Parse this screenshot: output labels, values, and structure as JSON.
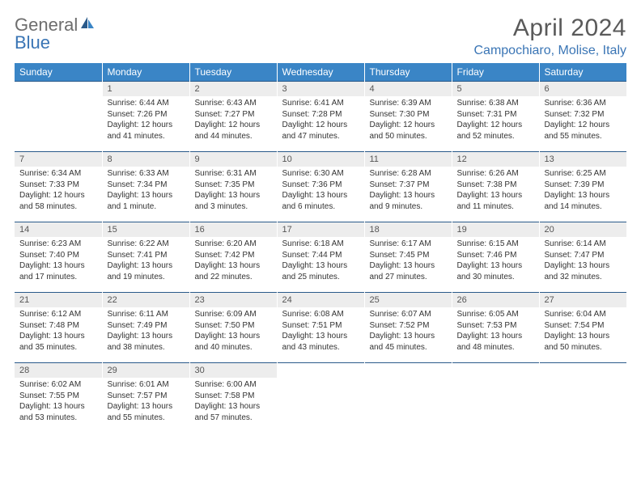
{
  "logo": {
    "text1": "General",
    "text2": "Blue"
  },
  "title": "April 2024",
  "location": "Campochiaro, Molise, Italy",
  "colors": {
    "header_bg": "#3a85c6",
    "header_text": "#ffffff",
    "num_bg": "#ededed",
    "border_top": "#2a5a8a",
    "accent": "#3a75b5",
    "logo_gray": "#6d6d6d"
  },
  "day_headers": [
    "Sunday",
    "Monday",
    "Tuesday",
    "Wednesday",
    "Thursday",
    "Friday",
    "Saturday"
  ],
  "weeks": [
    {
      "nums": [
        "",
        "1",
        "2",
        "3",
        "4",
        "5",
        "6"
      ],
      "cells": [
        null,
        {
          "sunrise": "6:44 AM",
          "sunset": "7:26 PM",
          "daylight": "12 hours and 41 minutes."
        },
        {
          "sunrise": "6:43 AM",
          "sunset": "7:27 PM",
          "daylight": "12 hours and 44 minutes."
        },
        {
          "sunrise": "6:41 AM",
          "sunset": "7:28 PM",
          "daylight": "12 hours and 47 minutes."
        },
        {
          "sunrise": "6:39 AM",
          "sunset": "7:30 PM",
          "daylight": "12 hours and 50 minutes."
        },
        {
          "sunrise": "6:38 AM",
          "sunset": "7:31 PM",
          "daylight": "12 hours and 52 minutes."
        },
        {
          "sunrise": "6:36 AM",
          "sunset": "7:32 PM",
          "daylight": "12 hours and 55 minutes."
        }
      ]
    },
    {
      "nums": [
        "7",
        "8",
        "9",
        "10",
        "11",
        "12",
        "13"
      ],
      "cells": [
        {
          "sunrise": "6:34 AM",
          "sunset": "7:33 PM",
          "daylight": "12 hours and 58 minutes."
        },
        {
          "sunrise": "6:33 AM",
          "sunset": "7:34 PM",
          "daylight": "13 hours and 1 minute."
        },
        {
          "sunrise": "6:31 AM",
          "sunset": "7:35 PM",
          "daylight": "13 hours and 3 minutes."
        },
        {
          "sunrise": "6:30 AM",
          "sunset": "7:36 PM",
          "daylight": "13 hours and 6 minutes."
        },
        {
          "sunrise": "6:28 AM",
          "sunset": "7:37 PM",
          "daylight": "13 hours and 9 minutes."
        },
        {
          "sunrise": "6:26 AM",
          "sunset": "7:38 PM",
          "daylight": "13 hours and 11 minutes."
        },
        {
          "sunrise": "6:25 AM",
          "sunset": "7:39 PM",
          "daylight": "13 hours and 14 minutes."
        }
      ]
    },
    {
      "nums": [
        "14",
        "15",
        "16",
        "17",
        "18",
        "19",
        "20"
      ],
      "cells": [
        {
          "sunrise": "6:23 AM",
          "sunset": "7:40 PM",
          "daylight": "13 hours and 17 minutes."
        },
        {
          "sunrise": "6:22 AM",
          "sunset": "7:41 PM",
          "daylight": "13 hours and 19 minutes."
        },
        {
          "sunrise": "6:20 AM",
          "sunset": "7:42 PM",
          "daylight": "13 hours and 22 minutes."
        },
        {
          "sunrise": "6:18 AM",
          "sunset": "7:44 PM",
          "daylight": "13 hours and 25 minutes."
        },
        {
          "sunrise": "6:17 AM",
          "sunset": "7:45 PM",
          "daylight": "13 hours and 27 minutes."
        },
        {
          "sunrise": "6:15 AM",
          "sunset": "7:46 PM",
          "daylight": "13 hours and 30 minutes."
        },
        {
          "sunrise": "6:14 AM",
          "sunset": "7:47 PM",
          "daylight": "13 hours and 32 minutes."
        }
      ]
    },
    {
      "nums": [
        "21",
        "22",
        "23",
        "24",
        "25",
        "26",
        "27"
      ],
      "cells": [
        {
          "sunrise": "6:12 AM",
          "sunset": "7:48 PM",
          "daylight": "13 hours and 35 minutes."
        },
        {
          "sunrise": "6:11 AM",
          "sunset": "7:49 PM",
          "daylight": "13 hours and 38 minutes."
        },
        {
          "sunrise": "6:09 AM",
          "sunset": "7:50 PM",
          "daylight": "13 hours and 40 minutes."
        },
        {
          "sunrise": "6:08 AM",
          "sunset": "7:51 PM",
          "daylight": "13 hours and 43 minutes."
        },
        {
          "sunrise": "6:07 AM",
          "sunset": "7:52 PM",
          "daylight": "13 hours and 45 minutes."
        },
        {
          "sunrise": "6:05 AM",
          "sunset": "7:53 PM",
          "daylight": "13 hours and 48 minutes."
        },
        {
          "sunrise": "6:04 AM",
          "sunset": "7:54 PM",
          "daylight": "13 hours and 50 minutes."
        }
      ]
    },
    {
      "nums": [
        "28",
        "29",
        "30",
        "",
        "",
        "",
        ""
      ],
      "cells": [
        {
          "sunrise": "6:02 AM",
          "sunset": "7:55 PM",
          "daylight": "13 hours and 53 minutes."
        },
        {
          "sunrise": "6:01 AM",
          "sunset": "7:57 PM",
          "daylight": "13 hours and 55 minutes."
        },
        {
          "sunrise": "6:00 AM",
          "sunset": "7:58 PM",
          "daylight": "13 hours and 57 minutes."
        },
        null,
        null,
        null,
        null
      ]
    }
  ],
  "labels": {
    "sunrise": "Sunrise:",
    "sunset": "Sunset:",
    "daylight": "Daylight:"
  }
}
